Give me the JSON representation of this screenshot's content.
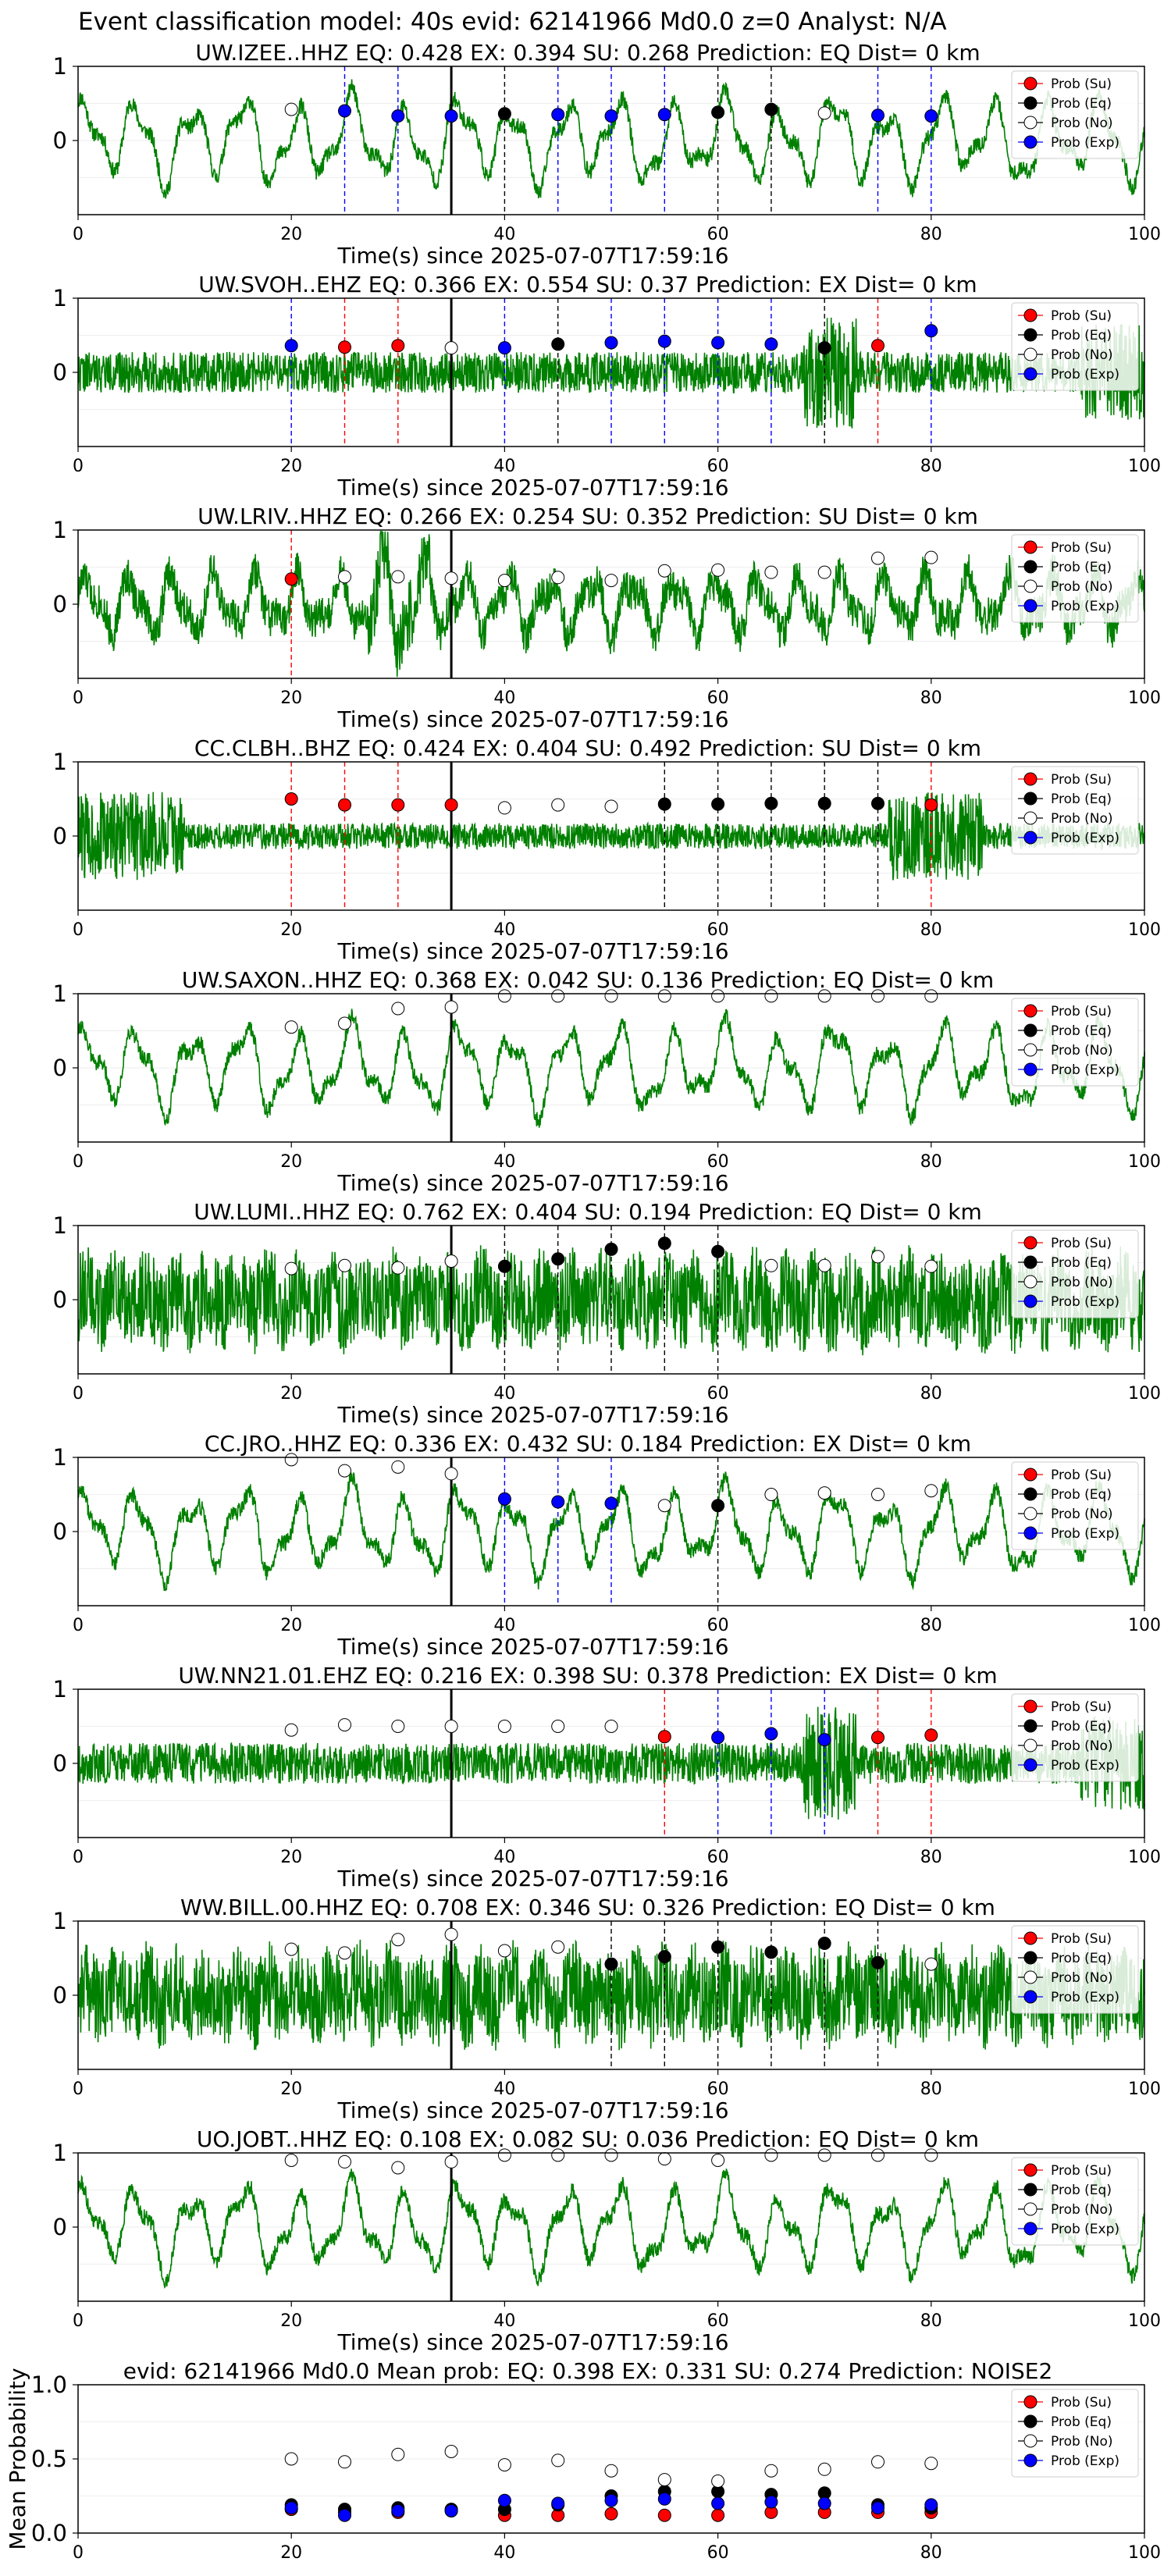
{
  "figure_title": "Event classification model: 40s evid: 62141966 Md0.0 z=0 Analyst: N/A",
  "legend_labels": [
    "Prob (Su)",
    "Prob (Eq)",
    "Prob (No)",
    "Prob (Exp)"
  ],
  "colors": {
    "trace": "#008000",
    "su": "#ff0000",
    "eq": "#000000",
    "no": "#ffffff",
    "exp": "#0000ff",
    "pick_line": "#000000"
  },
  "chart_data": [
    {
      "type": "line",
      "title": "UW.IZEE..HHZ   EQ: 0.428  EX: 0.394  SU: 0.268   Prediction: EQ    Dist= 0 km",
      "xlabel": "Time(s) since 2025-07-07T17:59:16",
      "ylabel": "",
      "xlim": [
        0,
        100
      ],
      "ylim": [
        -1,
        1
      ],
      "xticks": [
        "0",
        "20",
        "40",
        "60",
        "80",
        "100"
      ],
      "yticks": [
        "0",
        "1"
      ],
      "pick_time": 35,
      "waveform": {
        "style": "low",
        "seed": 11
      },
      "windows_s": [
        20,
        25,
        30,
        35,
        40,
        45,
        50,
        55,
        60,
        65,
        70,
        75,
        80
      ],
      "window_class": [
        "No",
        "Exp",
        "Exp",
        "Exp",
        "Eq",
        "Exp",
        "Exp",
        "Exp",
        "Eq",
        "Eq",
        "No",
        "Exp",
        "Exp"
      ],
      "max_prob": [
        0.42,
        0.4,
        0.33,
        0.33,
        0.36,
        0.35,
        0.33,
        0.35,
        0.38,
        0.42,
        0.37,
        0.34,
        0.33
      ]
    },
    {
      "type": "line",
      "title": "UW.SVOH..EHZ   EQ: 0.366  EX: 0.554  SU: 0.37   Prediction: EX    Dist= 0 km",
      "xlabel": "Time(s) since 2025-07-07T17:59:16",
      "ylabel": "",
      "xlim": [
        0,
        100
      ],
      "ylim": [
        -1,
        1
      ],
      "xticks": [
        "0",
        "20",
        "40",
        "60",
        "80",
        "100"
      ],
      "yticks": [
        "0",
        "1"
      ],
      "pick_time": 35,
      "waveform": {
        "style": "noisy_burst",
        "seed": 22
      },
      "windows_s": [
        20,
        25,
        30,
        35,
        40,
        45,
        50,
        55,
        60,
        65,
        70,
        75,
        80
      ],
      "window_class": [
        "Exp",
        "Su",
        "Su",
        "No",
        "Exp",
        "Eq",
        "Exp",
        "Exp",
        "Exp",
        "Exp",
        "Eq",
        "Su",
        "Exp"
      ],
      "max_prob": [
        0.36,
        0.34,
        0.36,
        0.33,
        0.33,
        0.38,
        0.4,
        0.42,
        0.4,
        0.38,
        0.33,
        0.36,
        0.56
      ]
    },
    {
      "type": "line",
      "title": "UW.LRIV..HHZ   EQ: 0.266  EX: 0.254  SU: 0.352   Prediction: SU    Dist= 0 km",
      "xlabel": "Time(s) since 2025-07-07T17:59:16",
      "ylabel": "",
      "xlim": [
        0,
        100
      ],
      "ylim": [
        -1,
        1
      ],
      "xticks": [
        "0",
        "20",
        "40",
        "60",
        "80",
        "100"
      ],
      "yticks": [
        "0",
        "1"
      ],
      "pick_time": 35,
      "waveform": {
        "style": "medium",
        "seed": 33
      },
      "windows_s": [
        20,
        25,
        30,
        35,
        40,
        45,
        50,
        55,
        60,
        65,
        70,
        75,
        80
      ],
      "window_class": [
        "Su",
        "No",
        "No",
        "No",
        "No",
        "No",
        "No",
        "No",
        "No",
        "No",
        "No",
        "No",
        "No"
      ],
      "max_prob": [
        0.34,
        0.37,
        0.37,
        0.35,
        0.32,
        0.36,
        0.32,
        0.45,
        0.46,
        0.43,
        0.43,
        0.62,
        0.63
      ]
    },
    {
      "type": "line",
      "title": "CC.CLBH..BHZ   EQ: 0.424  EX: 0.404  SU: 0.492   Prediction: SU    Dist= 0 km",
      "xlabel": "Time(s) since 2025-07-07T17:59:16",
      "ylabel": "",
      "xlim": [
        0,
        100
      ],
      "ylim": [
        -1,
        1
      ],
      "xticks": [
        "0",
        "20",
        "40",
        "60",
        "80",
        "100"
      ],
      "yticks": [
        "0",
        "1"
      ],
      "pick_time": 35,
      "waveform": {
        "style": "spiky_edges",
        "seed": 44
      },
      "windows_s": [
        20,
        25,
        30,
        35,
        40,
        45,
        50,
        55,
        60,
        65,
        70,
        75,
        80
      ],
      "window_class": [
        "Su",
        "Su",
        "Su",
        "Su",
        "No",
        "No",
        "No",
        "Eq",
        "Eq",
        "Eq",
        "Eq",
        "Eq",
        "Su"
      ],
      "max_prob": [
        0.5,
        0.42,
        0.42,
        0.42,
        0.38,
        0.42,
        0.4,
        0.43,
        0.43,
        0.44,
        0.44,
        0.44,
        0.42
      ]
    },
    {
      "type": "line",
      "title": "UW.SAXON..HHZ   EQ: 0.368  EX: 0.042  SU: 0.136   Prediction: EQ    Dist= 0 km",
      "xlabel": "Time(s) since 2025-07-07T17:59:16",
      "ylabel": "",
      "xlim": [
        0,
        100
      ],
      "ylim": [
        -1,
        1
      ],
      "xticks": [
        "0",
        "20",
        "40",
        "60",
        "80",
        "100"
      ],
      "yticks": [
        "0",
        "1"
      ],
      "pick_time": 35,
      "waveform": {
        "style": "low",
        "seed": 55
      },
      "windows_s": [
        20,
        25,
        30,
        35,
        40,
        45,
        50,
        55,
        60,
        65,
        70,
        75,
        80
      ],
      "window_class": [
        "No",
        "No",
        "No",
        "No",
        "No",
        "No",
        "No",
        "No",
        "No",
        "No",
        "No",
        "No",
        "No"
      ],
      "max_prob": [
        0.55,
        0.6,
        0.8,
        0.82,
        0.97,
        0.97,
        0.97,
        0.97,
        0.97,
        0.97,
        0.97,
        0.97,
        0.97
      ]
    },
    {
      "type": "line",
      "title": "UW.LUMI..HHZ   EQ: 0.762  EX: 0.404  SU: 0.194   Prediction: EQ    Dist= 0 km",
      "xlabel": "Time(s) since 2025-07-07T17:59:16",
      "ylabel": "",
      "xlim": [
        0,
        100
      ],
      "ylim": [
        -1,
        1
      ],
      "xticks": [
        "0",
        "20",
        "40",
        "60",
        "80",
        "100"
      ],
      "yticks": [
        "0",
        "1"
      ],
      "pick_time": 35,
      "waveform": {
        "style": "noisy",
        "seed": 66
      },
      "windows_s": [
        20,
        25,
        30,
        35,
        40,
        45,
        50,
        55,
        60,
        65,
        70,
        75,
        80
      ],
      "window_class": [
        "No",
        "No",
        "No",
        "No",
        "Eq",
        "Eq",
        "Eq",
        "Eq",
        "Eq",
        "No",
        "No",
        "No",
        "No"
      ],
      "max_prob": [
        0.42,
        0.46,
        0.43,
        0.52,
        0.45,
        0.55,
        0.68,
        0.76,
        0.65,
        0.46,
        0.46,
        0.58,
        0.45
      ]
    },
    {
      "type": "line",
      "title": "CC.JRO..HHZ   EQ: 0.336  EX: 0.432  SU: 0.184   Prediction: EX    Dist= 0 km",
      "xlabel": "Time(s) since 2025-07-07T17:59:16",
      "ylabel": "",
      "xlim": [
        0,
        100
      ],
      "ylim": [
        -1,
        1
      ],
      "xticks": [
        "0",
        "20",
        "40",
        "60",
        "80",
        "100"
      ],
      "yticks": [
        "0",
        "1"
      ],
      "pick_time": 35,
      "waveform": {
        "style": "low",
        "seed": 77
      },
      "windows_s": [
        20,
        25,
        30,
        35,
        40,
        45,
        50,
        55,
        60,
        65,
        70,
        75,
        80
      ],
      "window_class": [
        "No",
        "No",
        "No",
        "No",
        "Exp",
        "Exp",
        "Exp",
        "No",
        "Eq",
        "No",
        "No",
        "No",
        "No"
      ],
      "max_prob": [
        0.97,
        0.82,
        0.87,
        0.78,
        0.44,
        0.4,
        0.38,
        0.35,
        0.35,
        0.5,
        0.52,
        0.5,
        0.55
      ]
    },
    {
      "type": "line",
      "title": "UW.NN21.01.EHZ   EQ: 0.216  EX: 0.398  SU: 0.378   Prediction: EX    Dist= 0 km",
      "xlabel": "Time(s) since 2025-07-07T17:59:16",
      "ylabel": "",
      "xlim": [
        0,
        100
      ],
      "ylim": [
        -1,
        1
      ],
      "xticks": [
        "0",
        "20",
        "40",
        "60",
        "80",
        "100"
      ],
      "yticks": [
        "0",
        "1"
      ],
      "pick_time": 35,
      "waveform": {
        "style": "noisy_burst",
        "seed": 88
      },
      "windows_s": [
        20,
        25,
        30,
        35,
        40,
        45,
        50,
        55,
        60,
        65,
        70,
        75,
        80
      ],
      "window_class": [
        "No",
        "No",
        "No",
        "No",
        "No",
        "No",
        "No",
        "Su",
        "Exp",
        "Exp",
        "Exp",
        "Su",
        "Su"
      ],
      "max_prob": [
        0.45,
        0.52,
        0.5,
        0.5,
        0.5,
        0.5,
        0.5,
        0.36,
        0.35,
        0.4,
        0.32,
        0.35,
        0.38
      ]
    },
    {
      "type": "line",
      "title": "WW.BILL.00.HHZ   EQ: 0.708  EX: 0.346  SU: 0.326   Prediction: EQ    Dist= 0 km",
      "xlabel": "Time(s) since 2025-07-07T17:59:16",
      "ylabel": "",
      "xlim": [
        0,
        100
      ],
      "ylim": [
        -1,
        1
      ],
      "xticks": [
        "0",
        "20",
        "40",
        "60",
        "80",
        "100"
      ],
      "yticks": [
        "0",
        "1"
      ],
      "pick_time": 35,
      "waveform": {
        "style": "noisy",
        "seed": 99
      },
      "windows_s": [
        20,
        25,
        30,
        35,
        40,
        45,
        50,
        55,
        60,
        65,
        70,
        75,
        80
      ],
      "window_class": [
        "No",
        "No",
        "No",
        "No",
        "No",
        "No",
        "Eq",
        "Eq",
        "Eq",
        "Eq",
        "Eq",
        "Eq",
        "No"
      ],
      "max_prob": [
        0.62,
        0.57,
        0.75,
        0.82,
        0.6,
        0.65,
        0.42,
        0.52,
        0.65,
        0.58,
        0.7,
        0.44,
        0.42
      ]
    },
    {
      "type": "line",
      "title": "UO.JOBT..HHZ   EQ: 0.108  EX: 0.082  SU: 0.036   Prediction: EQ    Dist= 0 km",
      "xlabel": "Time(s) since 2025-07-07T17:59:16",
      "ylabel": "",
      "xlim": [
        0,
        100
      ],
      "ylim": [
        -1,
        1
      ],
      "xticks": [
        "0",
        "20",
        "40",
        "60",
        "80",
        "100"
      ],
      "yticks": [
        "0",
        "1"
      ],
      "pick_time": 35,
      "waveform": {
        "style": "low",
        "seed": 111
      },
      "windows_s": [
        20,
        25,
        30,
        35,
        40,
        45,
        50,
        55,
        60,
        65,
        70,
        75,
        80
      ],
      "window_class": [
        "No",
        "No",
        "No",
        "No",
        "No",
        "No",
        "No",
        "No",
        "No",
        "No",
        "No",
        "No",
        "No"
      ],
      "max_prob": [
        0.9,
        0.88,
        0.8,
        0.88,
        0.97,
        0.97,
        0.97,
        0.92,
        0.9,
        0.97,
        0.97,
        0.97,
        0.97
      ]
    },
    {
      "type": "scatter",
      "title": "evid: 62141966  Md0.0   Mean prob:   EQ: 0.398  EX: 0.331  SU: 0.274   Prediction: NOISE2",
      "xlabel": "",
      "ylabel": "Mean Probability",
      "xlim": [
        0,
        100
      ],
      "ylim": [
        0,
        1
      ],
      "xticks": [
        "0",
        "20",
        "40",
        "60",
        "80",
        "100"
      ],
      "yticks": [
        "0.0",
        "0.5",
        "1.0"
      ],
      "x": [
        20,
        25,
        30,
        35,
        40,
        45,
        50,
        55,
        60,
        65,
        70,
        75,
        80
      ],
      "series": [
        {
          "name": "Prob (Su)",
          "values": [
            0.16,
            0.14,
            0.14,
            0.15,
            0.12,
            0.12,
            0.13,
            0.12,
            0.12,
            0.14,
            0.14,
            0.14,
            0.14
          ]
        },
        {
          "name": "Prob (Eq)",
          "values": [
            0.19,
            0.16,
            0.17,
            0.16,
            0.16,
            0.19,
            0.25,
            0.28,
            0.28,
            0.26,
            0.27,
            0.19,
            0.17
          ]
        },
        {
          "name": "Prob (No)",
          "values": [
            0.5,
            0.48,
            0.53,
            0.55,
            0.46,
            0.49,
            0.42,
            0.36,
            0.35,
            0.42,
            0.43,
            0.48,
            0.47
          ]
        },
        {
          "name": "Prob (Exp)",
          "values": [
            0.17,
            0.12,
            0.15,
            0.15,
            0.22,
            0.2,
            0.22,
            0.23,
            0.2,
            0.21,
            0.2,
            0.17,
            0.19
          ]
        }
      ]
    }
  ]
}
